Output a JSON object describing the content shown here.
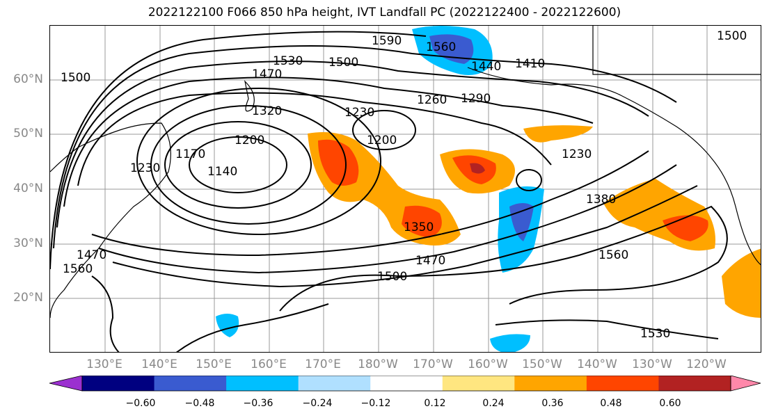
{
  "title": "2022122100 F066 850 hPa height, IVT Landfall PC (2022122400 - 2022122600)",
  "lat_labels": [
    "60°N",
    "50°N",
    "40°N",
    "30°N",
    "20°N"
  ],
  "lon_labels": [
    "130°E",
    "140°E",
    "150°E",
    "160°E",
    "170°E",
    "180°W",
    "170°W",
    "160°W",
    "150°W",
    "140°W",
    "130°W",
    "120°W"
  ],
  "colorbar": {
    "ticks": [
      "−0.60",
      "−0.48",
      "−0.36",
      "−0.24",
      "−0.12",
      "0.12",
      "0.24",
      "0.36",
      "0.48",
      "0.60"
    ],
    "colors": [
      "#9b30d0",
      "#000080",
      "#3a5bd0",
      "#00bfff",
      "#b0e0ff",
      "#ffffff",
      "#ffe680",
      "#ffa500",
      "#ff4500",
      "#b22222",
      "#ff88aa"
    ]
  },
  "contour_labels": [
    "1590",
    "1560",
    "1530",
    "1500",
    "1440",
    "1410",
    "1500",
    "1470",
    "1320",
    "1290",
    "1260",
    "1230",
    "1200",
    "1170",
    "1140",
    "1200",
    "1230",
    "1230",
    "1380",
    "1350",
    "1470",
    "1500",
    "1560",
    "1470",
    "1560",
    "1530",
    "1500"
  ]
}
